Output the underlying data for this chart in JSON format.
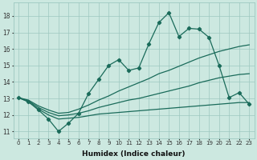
{
  "xlabel": "Humidex (Indice chaleur)",
  "background_color": "#cce8e0",
  "grid_color": "#9dc8c0",
  "line_color": "#1a6b5a",
  "xlim": [
    -0.5,
    23.5
  ],
  "ylim": [
    10.6,
    18.8
  ],
  "yticks": [
    11,
    12,
    13,
    14,
    15,
    16,
    17,
    18
  ],
  "xticks": [
    0,
    1,
    2,
    3,
    4,
    5,
    6,
    7,
    8,
    9,
    10,
    11,
    12,
    13,
    14,
    15,
    16,
    17,
    18,
    19,
    20,
    21,
    22,
    23
  ],
  "line_jagged": {
    "x": [
      0,
      1,
      2,
      3,
      4,
      5,
      6,
      7,
      8,
      9,
      10,
      11,
      12,
      13,
      14,
      15,
      16,
      17,
      18,
      19,
      20,
      21,
      22,
      23
    ],
    "y": [
      13.05,
      12.8,
      12.3,
      11.75,
      11.0,
      11.5,
      12.1,
      13.3,
      14.15,
      15.0,
      15.35,
      14.7,
      14.85,
      16.3,
      17.6,
      18.2,
      16.75,
      17.25,
      17.2,
      16.7,
      15.0,
      13.05,
      13.35,
      12.65
    ]
  },
  "line_upper": {
    "x": [
      0,
      1,
      2,
      3,
      4,
      5,
      6,
      7,
      8,
      9,
      10,
      11,
      12,
      13,
      14,
      15,
      16,
      17,
      18,
      19,
      20,
      21,
      22,
      23
    ],
    "y": [
      13.05,
      12.9,
      12.55,
      12.3,
      12.1,
      12.15,
      12.35,
      12.6,
      12.9,
      13.15,
      13.45,
      13.7,
      13.95,
      14.2,
      14.5,
      14.7,
      14.95,
      15.2,
      15.45,
      15.65,
      15.85,
      16.0,
      16.15,
      16.25
    ]
  },
  "line_mid": {
    "x": [
      0,
      1,
      2,
      3,
      4,
      5,
      6,
      7,
      8,
      9,
      10,
      11,
      12,
      13,
      14,
      15,
      16,
      17,
      18,
      19,
      20,
      21,
      22,
      23
    ],
    "y": [
      13.05,
      12.85,
      12.45,
      12.15,
      11.95,
      12.0,
      12.1,
      12.25,
      12.45,
      12.6,
      12.75,
      12.9,
      13.0,
      13.15,
      13.3,
      13.45,
      13.6,
      13.75,
      13.95,
      14.1,
      14.25,
      14.35,
      14.45,
      14.5
    ]
  },
  "line_lower": {
    "x": [
      0,
      1,
      2,
      3,
      4,
      5,
      6,
      7,
      8,
      9,
      10,
      11,
      12,
      13,
      14,
      15,
      16,
      17,
      18,
      19,
      20,
      21,
      22,
      23
    ],
    "y": [
      13.05,
      12.8,
      12.35,
      12.0,
      11.75,
      11.8,
      11.85,
      11.95,
      12.05,
      12.1,
      12.15,
      12.2,
      12.25,
      12.3,
      12.35,
      12.4,
      12.45,
      12.5,
      12.55,
      12.6,
      12.65,
      12.7,
      12.75,
      12.75
    ]
  }
}
